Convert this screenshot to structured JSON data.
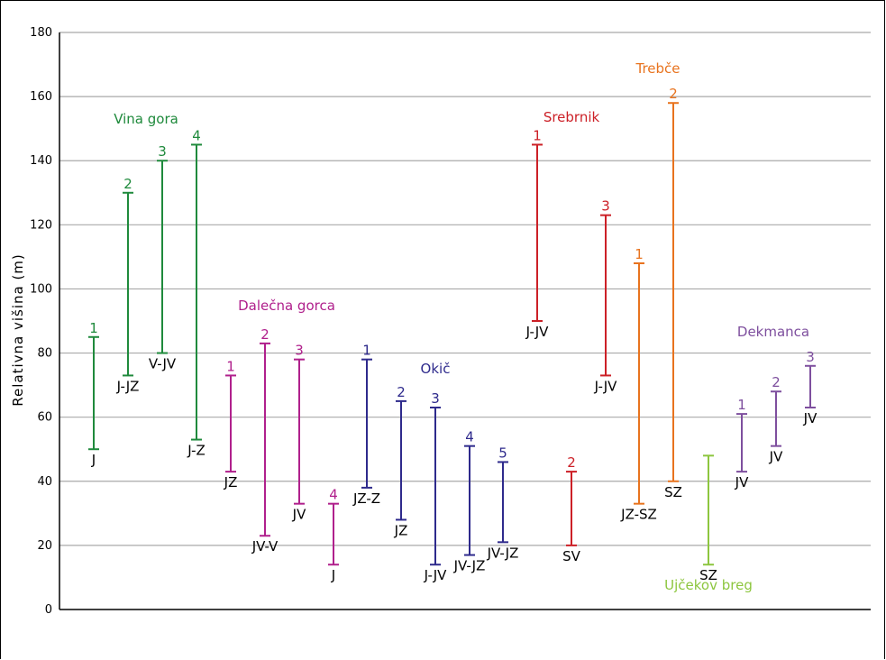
{
  "chart_data": {
    "type": "range",
    "title": "",
    "xlabel": "",
    "ylabel": "Relativna višina (m)",
    "ylim": [
      0,
      180
    ],
    "yticks": [
      0,
      20,
      40,
      60,
      80,
      100,
      120,
      140,
      160,
      180
    ],
    "grid": true,
    "colors": {
      "vina": "#1f8a3c",
      "dalecna": "#b0208c",
      "okic": "#2e2a8c",
      "srebrnik": "#cc2027",
      "trebce": "#e8731e",
      "ujcekov": "#8dc63f",
      "dekmanca": "#7e4f9e"
    },
    "groups": [
      {
        "name": "Vina gora",
        "color": "vina"
      },
      {
        "name": "Dalečna gorca",
        "color": "dalecna"
      },
      {
        "name": "Okič",
        "color": "okic"
      },
      {
        "name": "Srebrnik",
        "color": "srebrnik"
      },
      {
        "name": "Trebče",
        "color": "trebce"
      },
      {
        "name": "Ujčekov breg",
        "color": "ujcekov"
      },
      {
        "name": "Dekmanca",
        "color": "dekmanca"
      }
    ],
    "series": [
      {
        "group": "Vina gora",
        "num": "1",
        "low": 50,
        "high": 85,
        "aspect": "J"
      },
      {
        "group": "Vina gora",
        "num": "2",
        "low": 73,
        "high": 130,
        "aspect": "J-JZ"
      },
      {
        "group": "Vina gora",
        "num": "3",
        "low": 80,
        "high": 140,
        "aspect": "V-JV"
      },
      {
        "group": "Vina gora",
        "num": "4",
        "low": 53,
        "high": 145,
        "aspect": "J-Z"
      },
      {
        "group": "Dalečna gorca",
        "num": "1",
        "low": 43,
        "high": 73,
        "aspect": "JZ"
      },
      {
        "group": "Dalečna gorca",
        "num": "2",
        "low": 23,
        "high": 83,
        "aspect": "JV-V"
      },
      {
        "group": "Dalečna gorca",
        "num": "3",
        "low": 33,
        "high": 78,
        "aspect": "JV"
      },
      {
        "group": "Dalečna gorca",
        "num": "4",
        "low": 14,
        "high": 33,
        "aspect": "J"
      },
      {
        "group": "Okič",
        "num": "1",
        "low": 38,
        "high": 78,
        "aspect": "JZ-Z"
      },
      {
        "group": "Okič",
        "num": "2",
        "low": 28,
        "high": 65,
        "aspect": "JZ"
      },
      {
        "group": "Okič",
        "num": "3",
        "low": 14,
        "high": 63,
        "aspect": "J-JV"
      },
      {
        "group": "Okič",
        "num": "4",
        "low": 17,
        "high": 51,
        "aspect": "JV-JZ"
      },
      {
        "group": "Okič",
        "num": "5",
        "low": 21,
        "high": 46,
        "aspect": "JV-JZ"
      },
      {
        "group": "Srebrnik",
        "num": "1",
        "low": 90,
        "high": 145,
        "aspect": "J-JV"
      },
      {
        "group": "Srebrnik",
        "num": "2",
        "low": 20,
        "high": 43,
        "aspect": "SV"
      },
      {
        "group": "Srebrnik",
        "num": "3",
        "low": 73,
        "high": 123,
        "aspect": "J-JV"
      },
      {
        "group": "Trebče",
        "num": "1",
        "low": 33,
        "high": 108,
        "aspect": "JZ-SZ"
      },
      {
        "group": "Trebče",
        "num": "2",
        "low": 40,
        "high": 158,
        "aspect": "SZ"
      },
      {
        "group": "Ujčekov breg",
        "num": "",
        "low": 14,
        "high": 48,
        "aspect": "SZ"
      },
      {
        "group": "Dekmanca",
        "num": "1",
        "low": 43,
        "high": 61,
        "aspect": "JV"
      },
      {
        "group": "Dekmanca",
        "num": "2",
        "low": 51,
        "high": 68,
        "aspect": "JV"
      },
      {
        "group": "Dekmanca",
        "num": "3",
        "low": 63,
        "high": 76,
        "aspect": "JV"
      }
    ]
  }
}
